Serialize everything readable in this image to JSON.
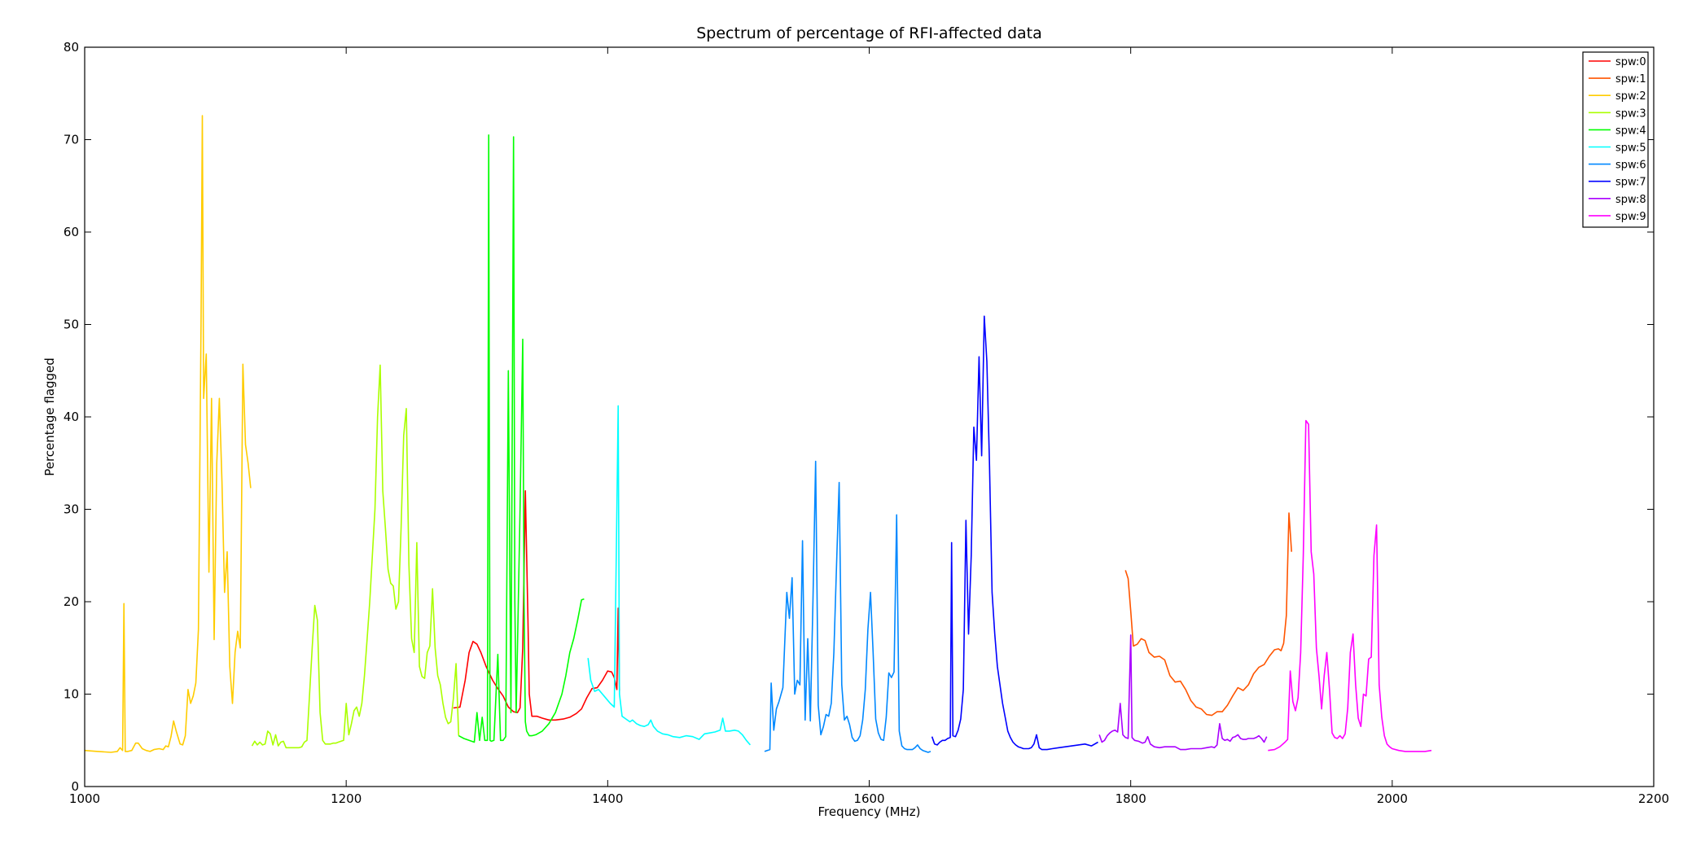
{
  "chart_data": {
    "type": "line",
    "title": "Spectrum of percentage of RFI-affected data",
    "xlabel": "Frequency (MHz)",
    "ylabel": "Percentage flagged",
    "xlim": [
      1000,
      2200
    ],
    "ylim": [
      0,
      80
    ],
    "xticks": [
      1000,
      1200,
      1400,
      1600,
      1800,
      2000,
      2200
    ],
    "yticks": [
      0,
      10,
      20,
      30,
      40,
      50,
      60,
      70,
      80
    ],
    "grid": false,
    "legend_position": "top-right",
    "series": [
      {
        "name": "spw:0",
        "color": "#ff0000",
        "x": [
          1282,
          1287,
          1291,
          1294,
          1297,
          1300,
          1303,
          1307,
          1312,
          1316,
          1320,
          1324,
          1328,
          1331,
          1333,
          1335,
          1337,
          1339,
          1340,
          1342,
          1346,
          1350,
          1355,
          1360,
          1366,
          1371,
          1376,
          1380,
          1384,
          1388,
          1392,
          1396,
          1400,
          1403,
          1405,
          1407,
          1408,
          1409
        ],
        "y": [
          8.5,
          8.6,
          11.5,
          14.5,
          15.7,
          15.4,
          14.5,
          13,
          11.5,
          10.6,
          9.8,
          8.6,
          8.1,
          8.0,
          8.5,
          15,
          32,
          18,
          10,
          7.6,
          7.6,
          7.4,
          7.2,
          7.2,
          7.3,
          7.5,
          7.9,
          8.4,
          9.6,
          10.6,
          10.7,
          11.5,
          12.5,
          12.4,
          11.8,
          10.5,
          19.3,
          10.4
        ]
      },
      {
        "name": "spw:1",
        "color": "#ff5500",
        "x": [
          1796,
          1798,
          1800,
          1802,
          1805,
          1808,
          1811,
          1814,
          1818,
          1822,
          1826,
          1830,
          1834,
          1838,
          1842,
          1846,
          1850,
          1854,
          1858,
          1862,
          1866,
          1870,
          1874,
          1878,
          1882,
          1886,
          1890,
          1894,
          1898,
          1902,
          1906,
          1910,
          1913,
          1915,
          1917,
          1919,
          1921,
          1923
        ],
        "y": [
          23.4,
          22.5,
          19,
          15.2,
          15.4,
          16,
          15.8,
          14.5,
          14,
          14.1,
          13.7,
          12,
          11.3,
          11.4,
          10.5,
          9.3,
          8.6,
          8.4,
          7.8,
          7.7,
          8.1,
          8.1,
          8.8,
          9.8,
          10.7,
          10.4,
          11,
          12.2,
          12.9,
          13.2,
          14.1,
          14.8,
          14.9,
          14.7,
          15.5,
          18.5,
          29.6,
          25.4
        ]
      },
      {
        "name": "spw:2",
        "color": "#ffcc00",
        "x": [
          1000,
          1010,
          1020,
          1025,
          1027,
          1029,
          1030,
          1031,
          1033,
          1036,
          1039,
          1041,
          1044,
          1047,
          1050,
          1053,
          1057,
          1060,
          1062,
          1064,
          1066,
          1068,
          1070,
          1073,
          1075,
          1077,
          1079,
          1081,
          1083,
          1085,
          1087,
          1089,
          1090,
          1091,
          1093,
          1095,
          1097,
          1099,
          1101,
          1103,
          1105,
          1107,
          1109,
          1111,
          1113,
          1115,
          1117,
          1119,
          1121,
          1123,
          1125,
          1127
        ],
        "y": [
          3.9,
          3.8,
          3.7,
          3.8,
          4.2,
          3.9,
          19.8,
          3.8,
          3.8,
          3.9,
          4.7,
          4.7,
          4.1,
          3.9,
          3.8,
          4,
          4.1,
          4,
          4.4,
          4.3,
          5.4,
          7.1,
          6,
          4.6,
          4.5,
          5.5,
          10.5,
          9,
          9.8,
          11.2,
          17,
          50,
          72.6,
          42,
          46.8,
          23.2,
          42,
          15.9,
          35,
          42,
          33,
          21,
          25.4,
          13,
          9,
          14.5,
          16.8,
          15,
          45.7,
          37,
          35,
          32.3
        ]
      },
      {
        "name": "spw:3",
        "color": "#aaff00",
        "x": [
          1128,
          1130,
          1132,
          1134,
          1136,
          1138,
          1140,
          1142,
          1144,
          1146,
          1148,
          1150,
          1152,
          1154,
          1156,
          1158,
          1160,
          1162,
          1164,
          1166,
          1168,
          1170,
          1172,
          1174,
          1176,
          1178,
          1180,
          1182,
          1184,
          1186,
          1188,
          1190,
          1192,
          1194,
          1196,
          1198,
          1200,
          1202,
          1204,
          1206,
          1208,
          1210,
          1212,
          1214,
          1216,
          1218,
          1220,
          1222,
          1224,
          1226,
          1228,
          1230,
          1232,
          1234,
          1236,
          1238,
          1240,
          1242,
          1244,
          1246,
          1248,
          1250,
          1252,
          1254,
          1256,
          1258,
          1260,
          1262,
          1264,
          1266,
          1268,
          1270,
          1272,
          1274,
          1276,
          1278,
          1280,
          1282,
          1284,
          1286
        ],
        "y": [
          4.4,
          4.9,
          4.5,
          4.8,
          4.5,
          4.6,
          6,
          5.7,
          4.5,
          5.6,
          4.4,
          4.8,
          4.9,
          4.2,
          4.2,
          4.2,
          4.2,
          4.2,
          4.2,
          4.3,
          4.8,
          5,
          10,
          15,
          19.6,
          18,
          8,
          5,
          4.6,
          4.6,
          4.6,
          4.7,
          4.7,
          4.8,
          4.9,
          5,
          9,
          5.6,
          6.8,
          8.2,
          8.6,
          7.6,
          9,
          12,
          16,
          20,
          25,
          30,
          40,
          45.6,
          32,
          28,
          23.5,
          22,
          21.7,
          19.2,
          20,
          28,
          38,
          40.9,
          24,
          16,
          14.5,
          26.4,
          13,
          11.9,
          11.7,
          14.5,
          15.2,
          21.4,
          15,
          12,
          11,
          9,
          7.5,
          6.8,
          7,
          9.5,
          13.3,
          5.5
        ]
      },
      {
        "name": "spw:4",
        "color": "#00ff00",
        "x": [
          1286,
          1290,
          1294,
          1298,
          1300,
          1302,
          1304,
          1306,
          1308,
          1309,
          1310,
          1311,
          1313,
          1316,
          1318,
          1320,
          1322,
          1324,
          1326,
          1328,
          1329,
          1330,
          1331,
          1333,
          1335,
          1336,
          1337,
          1338,
          1340,
          1342,
          1345,
          1350,
          1355,
          1360,
          1365,
          1368,
          1371,
          1374,
          1377,
          1380,
          1382
        ],
        "y": [
          5.5,
          5.2,
          5,
          4.8,
          8,
          5,
          7.5,
          5,
          5,
          70.5,
          5,
          4.9,
          5,
          14.3,
          5,
          5,
          5.4,
          45,
          8,
          70.3,
          20,
          8,
          15,
          30,
          48.4,
          20,
          7,
          6,
          5.5,
          5.5,
          5.6,
          6,
          6.8,
          8,
          10,
          12,
          14.5,
          16,
          18,
          20.2,
          20.3
        ]
      },
      {
        "name": "spw:5",
        "color": "#00ffff",
        "x": [
          1385,
          1387,
          1390,
          1393,
          1396,
          1399,
          1402,
          1405,
          1407,
          1408,
          1409,
          1411,
          1414,
          1417,
          1419,
          1422,
          1425,
          1428,
          1431,
          1433,
          1435,
          1438,
          1442,
          1446,
          1450,
          1455,
          1460,
          1465,
          1470,
          1474,
          1478,
          1482,
          1486,
          1488,
          1490,
          1493,
          1497,
          1500,
          1503,
          1506,
          1509
        ],
        "y": [
          13.9,
          11.5,
          10.3,
          10.5,
          10,
          9.5,
          9,
          8.6,
          30,
          41.2,
          10,
          7.6,
          7.3,
          7,
          7.2,
          6.8,
          6.6,
          6.5,
          6.7,
          7.2,
          6.5,
          6,
          5.7,
          5.6,
          5.4,
          5.3,
          5.5,
          5.4,
          5.1,
          5.7,
          5.8,
          5.9,
          6.1,
          7.4,
          6,
          6,
          6.1,
          6,
          5.6,
          5,
          4.5
        ]
      },
      {
        "name": "spw:6",
        "color": "#0088ff",
        "x": [
          1520,
          1524,
          1525,
          1527,
          1529,
          1531,
          1534,
          1537,
          1539,
          1541,
          1543,
          1545,
          1547,
          1549,
          1551,
          1553,
          1555,
          1557,
          1559,
          1561,
          1563,
          1565,
          1567,
          1569,
          1571,
          1573,
          1575,
          1577,
          1579,
          1581,
          1583,
          1585,
          1587,
          1589,
          1591,
          1593,
          1595,
          1597,
          1599,
          1601,
          1603,
          1605,
          1607,
          1609,
          1611,
          1613,
          1615,
          1617,
          1619,
          1621,
          1623,
          1625,
          1627,
          1629,
          1631,
          1633,
          1635,
          1637,
          1639,
          1641,
          1643,
          1645,
          1647
        ],
        "y": [
          3.8,
          4,
          11.2,
          6.1,
          8.4,
          9.2,
          10.7,
          21,
          18.2,
          22.6,
          10,
          11.5,
          11,
          26.6,
          7.2,
          16,
          7.1,
          20,
          35.2,
          8.8,
          5.6,
          6.5,
          7.8,
          7.6,
          9,
          14.5,
          24,
          32.9,
          11,
          7.2,
          7.6,
          6.7,
          5.3,
          4.9,
          5,
          5.5,
          7.2,
          10.5,
          17,
          21,
          14.5,
          7.3,
          5.8,
          5.1,
          5,
          7.5,
          12.3,
          11.8,
          12.4,
          29.4,
          6,
          4.4,
          4.1,
          4,
          4,
          4,
          4.2,
          4.5,
          4.1,
          3.9,
          3.8,
          3.7,
          3.8
        ]
      },
      {
        "name": "spw:7",
        "color": "#0000ff",
        "x": [
          1648,
          1650,
          1652,
          1654,
          1656,
          1658,
          1660,
          1662,
          1663,
          1664,
          1666,
          1668,
          1670,
          1672,
          1674,
          1676,
          1678,
          1680,
          1682,
          1684,
          1686,
          1688,
          1690,
          1692,
          1694,
          1696,
          1698,
          1700,
          1702,
          1704,
          1706,
          1708,
          1710,
          1712,
          1714,
          1716,
          1718,
          1720,
          1722,
          1724,
          1726,
          1728,
          1730,
          1732,
          1734,
          1736,
          1740,
          1745,
          1750,
          1755,
          1760,
          1765,
          1770,
          1775
        ],
        "y": [
          5.4,
          4.6,
          4.5,
          4.8,
          5,
          5,
          5.2,
          5.3,
          26.4,
          5.5,
          5.4,
          6.1,
          7.3,
          10.5,
          28.8,
          16.5,
          25,
          38.9,
          35.3,
          46.5,
          35.8,
          50.9,
          46,
          35,
          21,
          16.5,
          13,
          11,
          9,
          7.5,
          6,
          5.3,
          4.8,
          4.5,
          4.3,
          4.2,
          4.1,
          4.1,
          4.1,
          4.2,
          4.6,
          5.6,
          4.2,
          4,
          4,
          4,
          4.1,
          4.2,
          4.3,
          4.4,
          4.5,
          4.6,
          4.4,
          4.8
        ]
      },
      {
        "name": "spw:8",
        "color": "#aa00ff",
        "x": [
          1776,
          1778,
          1780,
          1782,
          1784,
          1786,
          1788,
          1790,
          1792,
          1794,
          1796,
          1798,
          1800,
          1801,
          1803,
          1806,
          1809,
          1811,
          1813,
          1815,
          1818,
          1822,
          1826,
          1830,
          1834,
          1838,
          1842,
          1846,
          1850,
          1854,
          1858,
          1862,
          1864,
          1866,
          1868,
          1870,
          1872,
          1874,
          1876,
          1878,
          1880,
          1882,
          1884,
          1886,
          1888,
          1890,
          1892,
          1894,
          1896,
          1898,
          1900,
          1902,
          1904
        ],
        "y": [
          5.6,
          4.8,
          5,
          5.5,
          5.8,
          6,
          6.1,
          5.9,
          9,
          5.6,
          5.3,
          5.2,
          16.4,
          5.3,
          5,
          4.9,
          4.7,
          4.8,
          5.4,
          4.6,
          4.3,
          4.2,
          4.3,
          4.3,
          4.3,
          4,
          4,
          4.1,
          4.1,
          4.1,
          4.2,
          4.3,
          4.2,
          4.5,
          6.8,
          5.2,
          5,
          5.1,
          4.9,
          5.3,
          5.4,
          5.6,
          5.2,
          5.1,
          5.1,
          5.2,
          5.2,
          5.2,
          5.3,
          5.5,
          5.2,
          4.8,
          5.4
        ]
      },
      {
        "name": "spw:9",
        "color": "#ff00ff",
        "x": [
          1905,
          1910,
          1914,
          1918,
          1920,
          1922,
          1924,
          1926,
          1928,
          1930,
          1932,
          1934,
          1936,
          1938,
          1940,
          1942,
          1944,
          1946,
          1948,
          1950,
          1952,
          1954,
          1956,
          1958,
          1960,
          1962,
          1964,
          1966,
          1968,
          1970,
          1972,
          1974,
          1976,
          1978,
          1980,
          1982,
          1984,
          1986,
          1988,
          1990,
          1992,
          1994,
          1996,
          1998,
          2000,
          2005,
          2010,
          2015,
          2020,
          2025,
          2030
        ],
        "y": [
          3.9,
          4,
          4.3,
          4.8,
          5.1,
          12.5,
          9.2,
          8.2,
          9.6,
          14.5,
          25,
          39.6,
          39.2,
          25.4,
          23,
          15,
          12,
          8.4,
          12,
          14.5,
          10.5,
          5.8,
          5.3,
          5.2,
          5.5,
          5.2,
          5.7,
          8.5,
          14.5,
          16.5,
          11,
          7.4,
          6.5,
          10,
          9.8,
          13.8,
          14,
          25,
          28.3,
          11,
          7.5,
          5.5,
          4.6,
          4.3,
          4.1,
          3.9,
          3.8,
          3.8,
          3.8,
          3.8,
          3.9
        ]
      }
    ]
  }
}
